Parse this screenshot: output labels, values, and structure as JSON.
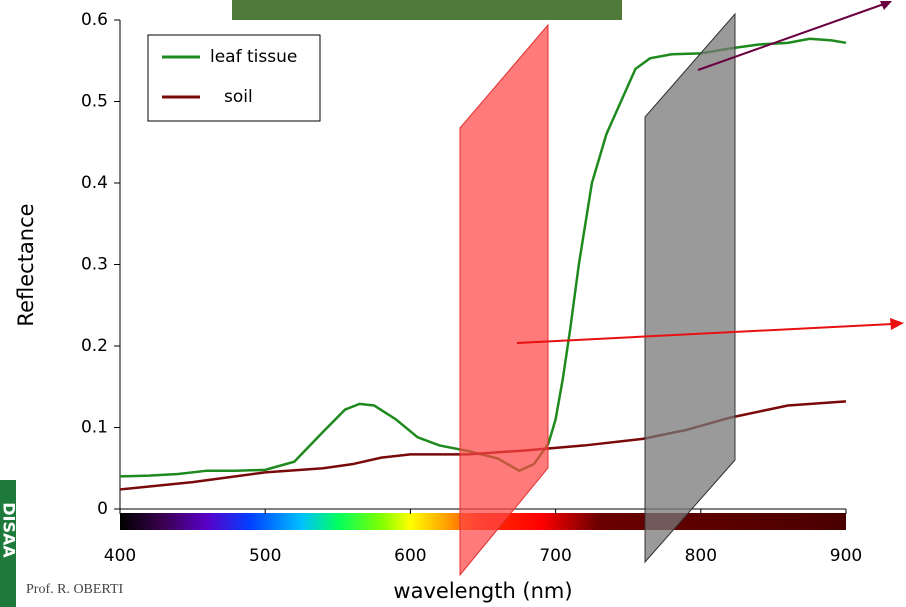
{
  "chart_data": {
    "type": "line",
    "xlabel": "wavelength (nm)",
    "ylabel": "Reflectance",
    "xlim": [
      400,
      900
    ],
    "xticks": [
      400,
      500,
      600,
      700,
      800,
      900
    ],
    "ylim": [
      0,
      0.6
    ],
    "yticks": [
      0,
      0.1,
      0.2,
      0.3,
      0.4,
      0.5,
      0.6
    ],
    "grid": false,
    "legend": "upper left",
    "series": [
      {
        "name": "leaf tissue",
        "color": "#1e8a1e",
        "x": [
          400,
          420,
          440,
          460,
          480,
          500,
          520,
          540,
          555,
          565,
          575,
          590,
          605,
          620,
          640,
          660,
          675,
          685,
          695,
          700,
          705,
          710,
          716,
          725,
          735,
          745,
          755,
          765,
          780,
          800,
          820,
          840,
          860,
          875,
          890,
          900
        ],
        "values": [
          0.04,
          0.041,
          0.043,
          0.047,
          0.047,
          0.048,
          0.058,
          0.095,
          0.122,
          0.129,
          0.127,
          0.11,
          0.088,
          0.078,
          0.071,
          0.062,
          0.047,
          0.055,
          0.08,
          0.11,
          0.16,
          0.22,
          0.3,
          0.4,
          0.46,
          0.5,
          0.54,
          0.553,
          0.558,
          0.559,
          0.565,
          0.57,
          0.572,
          0.577,
          0.575,
          0.572
        ]
      },
      {
        "name": "soil",
        "color": "#7a0a0a",
        "x": [
          400,
          450,
          500,
          540,
          560,
          580,
          600,
          640,
          680,
          720,
          760,
          790,
          820,
          860,
          900
        ],
        "values": [
          0.024,
          0.033,
          0.045,
          0.05,
          0.055,
          0.063,
          0.067,
          0.067,
          0.072,
          0.078,
          0.086,
          0.097,
          0.112,
          0.127,
          0.132
        ]
      }
    ]
  },
  "slide": {
    "author": "Prof. R. OBERTI",
    "logo": "DISAA"
  }
}
